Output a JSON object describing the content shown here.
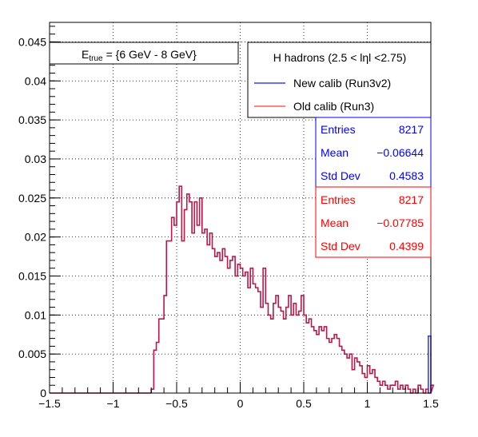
{
  "chart_data": {
    "type": "line",
    "title": "",
    "xlabel": "",
    "ylabel": "",
    "xlim": [
      -1.5,
      1.5
    ],
    "ylim": [
      0,
      0.0475
    ],
    "grid": true,
    "energy_label": {
      "prefix": "E",
      "subscript": "true",
      "value": "= {6 GeV - 8 GeV}"
    },
    "legend": {
      "header": "H hadrons (2.5 < lηl <2.75)",
      "placement": "top-right",
      "entries": [
        {
          "name": "New calib (Run3v2)",
          "color": "#3b3bff"
        },
        {
          "name": "Old calib (Run3)",
          "color": "#ff5c5c"
        }
      ]
    },
    "stats_boxes": [
      {
        "color": "#0000ff",
        "rows": [
          {
            "label": "Entries",
            "value": "8217"
          },
          {
            "label": "Mean",
            "value": "−0.06644"
          },
          {
            "label": "Std Dev",
            "value": "0.4583"
          }
        ]
      },
      {
        "color": "#ff0000",
        "rows": [
          {
            "label": "Entries",
            "value": "8217"
          },
          {
            "label": "Mean",
            "value": "−0.07785"
          },
          {
            "label": "Std Dev",
            "value": "0.4399"
          }
        ]
      }
    ],
    "x_ticks": [
      {
        "value": -1.5,
        "label": "−1.5"
      },
      {
        "value": -1,
        "label": "−1"
      },
      {
        "value": -0.5,
        "label": "−0.5"
      },
      {
        "value": 0,
        "label": "0"
      },
      {
        "value": 0.5,
        "label": "0.5"
      },
      {
        "value": 1,
        "label": "1"
      },
      {
        "value": 1.5,
        "label": "1.5"
      }
    ],
    "y_ticks": [
      {
        "value": 0,
        "label": "0"
      },
      {
        "value": 0.005,
        "label": "0.005"
      },
      {
        "value": 0.01,
        "label": "0.01"
      },
      {
        "value": 0.015,
        "label": "0.015"
      },
      {
        "value": 0.02,
        "label": "0.02"
      },
      {
        "value": 0.025,
        "label": "0.025"
      },
      {
        "value": 0.03,
        "label": "0.03"
      },
      {
        "value": 0.035,
        "label": "0.035"
      },
      {
        "value": 0.04,
        "label": "0.04"
      },
      {
        "value": 0.045,
        "label": "0.045"
      }
    ],
    "bin_edges": [
      -1.5,
      1.5
    ],
    "series": [
      {
        "name": "Old calib (Run3)",
        "color": "#b8184a",
        "bin_width": 0.02,
        "x_start": -0.7,
        "values": [
          0.0005,
          0.0055,
          0.0065,
          0.0095,
          0.0095,
          0.0125,
          0.0195,
          0.0195,
          0.0225,
          0.0215,
          0.0245,
          0.0265,
          0.0195,
          0.0235,
          0.0255,
          0.0245,
          0.0205,
          0.0245,
          0.0215,
          0.025,
          0.0205,
          0.021,
          0.019,
          0.0205,
          0.0185,
          0.0175,
          0.018,
          0.017,
          0.0185,
          0.0175,
          0.016,
          0.017,
          0.0175,
          0.015,
          0.0165,
          0.016,
          0.015,
          0.0155,
          0.0135,
          0.016,
          0.014,
          0.0135,
          0.013,
          0.011,
          0.016,
          0.0115,
          0.01,
          0.0095,
          0.0115,
          0.0125,
          0.011,
          0.0105,
          0.0095,
          0.011,
          0.0125,
          0.01,
          0.0115,
          0.01,
          0.0105,
          0.0125,
          0.01,
          0.009,
          0.0095,
          0.0085,
          0.008,
          0.0075,
          0.0085,
          0.008,
          0.0085,
          0.007,
          0.0065,
          0.007,
          0.0075,
          0.007,
          0.006,
          0.0055,
          0.005,
          0.0045,
          0.005,
          0.003,
          0.0045,
          0.004,
          0.0035,
          0.0025,
          0.002,
          0.0035,
          0.0025,
          0.003,
          0.002,
          0.0015,
          0.001,
          0.0015,
          0.001,
          0.0005,
          0.001,
          0.001,
          0.0015,
          0.0005,
          0.001,
          0.0005,
          0.001,
          0.0005,
          0.0,
          0.0005,
          0.0,
          0.001,
          0.0005,
          0.0,
          0.0005,
          0.0,
          0.001
        ]
      },
      {
        "name": "New calib (Run3v2)",
        "color": "#3b3bff",
        "bin_width": 0.02,
        "x_start": 1.48,
        "values": [
          0.0073
        ]
      }
    ]
  }
}
